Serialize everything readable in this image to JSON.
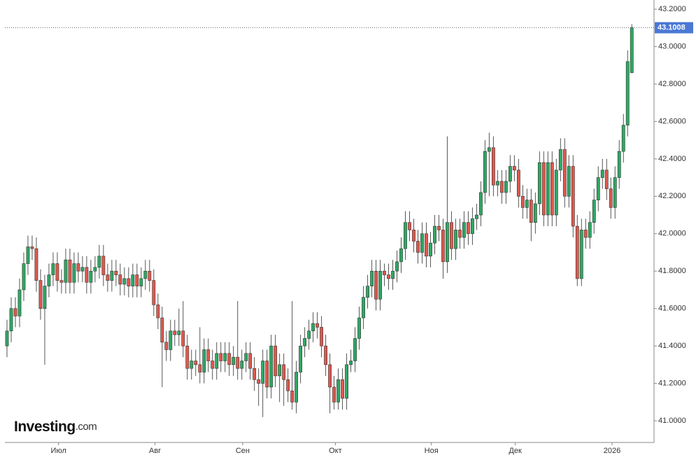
{
  "chart_data": {
    "type": "candlestick",
    "logo": {
      "brand": "Investing",
      "suffix": ".com"
    },
    "open": [
      41.4,
      41.48,
      41.6,
      41.56,
      41.7,
      41.84,
      41.93,
      41.92,
      41.75,
      41.6,
      41.72,
      41.78,
      41.84,
      41.75,
      41.74,
      41.86,
      41.74,
      41.84,
      41.8,
      41.82,
      41.74,
      41.8,
      41.82,
      41.88,
      41.78,
      41.75,
      41.8,
      41.78,
      41.73,
      41.76,
      41.72,
      41.78,
      41.72,
      41.76,
      41.8,
      41.75,
      41.62,
      41.55,
      41.42,
      41.38,
      41.48,
      41.46,
      41.48,
      41.4,
      41.28,
      41.32,
      41.3,
      41.26,
      41.38,
      41.32,
      41.28,
      41.36,
      41.32,
      41.36,
      41.3,
      41.34,
      41.28,
      41.32,
      41.36,
      41.28,
      41.22,
      41.2,
      41.32,
      41.18,
      41.4,
      41.24,
      41.3,
      41.22,
      41.16,
      41.1,
      41.26,
      41.4,
      41.44,
      41.48,
      41.52,
      41.5,
      41.4,
      41.3,
      41.18,
      41.1,
      41.22,
      41.12,
      41.3,
      41.32,
      41.44,
      41.55,
      41.66,
      41.72,
      41.8,
      41.65,
      41.8,
      41.78,
      41.76,
      41.8,
      41.85,
      41.92,
      42.06,
      42.02,
      41.96,
      41.9,
      42.0,
      41.88,
      41.95,
      42.04,
      42.02,
      41.85,
      42.06,
      41.92,
      42.02,
      41.98,
      42.06,
      42.0,
      42.08,
      42.1,
      42.22,
      42.44,
      42.46,
      42.26,
      42.28,
      42.22,
      42.28,
      42.36,
      42.34,
      42.2,
      42.14,
      42.18,
      42.06,
      42.16,
      42.38,
      42.1,
      42.38,
      42.1,
      42.34,
      42.45,
      42.2,
      42.36,
      42.04,
      41.76,
      42.02,
      41.98,
      42.06,
      42.18,
      42.3,
      42.34,
      42.24,
      42.14,
      42.3,
      42.44,
      42.58,
      42.86
    ],
    "high": [
      41.54,
      41.66,
      41.66,
      41.76,
      41.9,
      41.99,
      41.99,
      41.98,
      41.81,
      41.78,
      41.84,
      41.9,
      41.9,
      41.81,
      41.92,
      41.92,
      41.9,
      41.9,
      41.88,
      41.88,
      41.86,
      41.88,
      41.94,
      41.94,
      41.84,
      41.86,
      41.86,
      41.84,
      41.82,
      41.82,
      41.84,
      41.84,
      41.82,
      41.86,
      41.86,
      41.81,
      41.68,
      41.61,
      41.48,
      41.54,
      41.54,
      41.6,
      41.64,
      41.46,
      41.38,
      41.38,
      41.5,
      41.44,
      41.44,
      41.38,
      41.42,
      41.42,
      41.42,
      41.42,
      41.4,
      41.64,
      41.38,
      41.42,
      41.42,
      41.34,
      41.28,
      41.38,
      41.38,
      41.46,
      41.46,
      41.36,
      41.36,
      41.28,
      41.64,
      41.32,
      41.46,
      41.5,
      41.54,
      41.58,
      41.58,
      41.56,
      41.46,
      41.36,
      41.24,
      41.28,
      41.28,
      41.36,
      41.38,
      41.5,
      41.61,
      41.72,
      41.78,
      41.86,
      41.86,
      41.86,
      41.84,
      41.84,
      41.86,
      41.91,
      41.98,
      42.12,
      42.12,
      42.08,
      42.02,
      42.06,
      42.06,
      42.01,
      42.1,
      42.1,
      42.08,
      42.52,
      42.12,
      42.08,
      42.08,
      42.12,
      42.12,
      42.14,
      42.16,
      42.28,
      42.5,
      42.54,
      42.52,
      42.34,
      42.34,
      42.34,
      42.42,
      42.42,
      42.4,
      42.26,
      42.24,
      42.24,
      42.22,
      42.44,
      42.44,
      42.44,
      42.44,
      42.4,
      42.51,
      42.51,
      42.42,
      42.42,
      42.1,
      42.08,
      42.08,
      42.12,
      42.24,
      42.36,
      42.4,
      42.4,
      42.3,
      42.36,
      42.5,
      42.64,
      42.98,
      43.12
    ],
    "low": [
      41.34,
      41.42,
      41.5,
      41.5,
      41.64,
      41.78,
      41.86,
      41.69,
      41.54,
      41.3,
      41.66,
      41.72,
      41.69,
      41.68,
      41.68,
      41.68,
      41.68,
      41.74,
      41.74,
      41.68,
      41.68,
      41.74,
      41.76,
      41.72,
      41.69,
      41.69,
      41.72,
      41.67,
      41.67,
      41.66,
      41.66,
      41.66,
      41.66,
      41.7,
      41.69,
      41.56,
      41.49,
      41.18,
      41.32,
      41.32,
      41.4,
      41.4,
      41.34,
      41.22,
      41.22,
      41.24,
      41.2,
      41.2,
      41.26,
      41.22,
      41.22,
      41.26,
      41.26,
      41.24,
      41.24,
      41.22,
      41.22,
      41.26,
      41.22,
      41.16,
      41.08,
      41.02,
      41.12,
      41.12,
      41.18,
      41.1,
      41.08,
      41.1,
      41.06,
      41.04,
      41.2,
      41.34,
      41.38,
      41.42,
      41.44,
      41.34,
      41.24,
      41.04,
      41.06,
      41.06,
      41.06,
      41.06,
      41.26,
      41.26,
      41.38,
      41.49,
      41.6,
      41.66,
      41.59,
      41.59,
      41.72,
      41.7,
      41.7,
      41.74,
      41.79,
      41.86,
      41.96,
      41.9,
      41.84,
      41.84,
      41.82,
      41.82,
      41.89,
      41.96,
      41.76,
      41.79,
      41.86,
      41.86,
      41.92,
      41.92,
      41.94,
      41.94,
      42.02,
      42.04,
      42.16,
      42.2,
      42.2,
      42.2,
      42.16,
      42.16,
      42.22,
      42.28,
      42.14,
      42.08,
      42.08,
      41.96,
      42.0,
      42.1,
      42.04,
      42.04,
      42.04,
      42.04,
      42.28,
      42.14,
      42.14,
      41.98,
      41.72,
      41.72,
      41.92,
      41.92,
      42.0,
      42.12,
      42.24,
      42.18,
      42.08,
      42.08,
      42.24,
      42.38,
      42.52,
      42.86
    ],
    "close": [
      41.48,
      41.6,
      41.56,
      41.7,
      41.84,
      41.93,
      41.92,
      41.75,
      41.6,
      41.72,
      41.78,
      41.84,
      41.75,
      41.74,
      41.86,
      41.74,
      41.84,
      41.8,
      41.82,
      41.74,
      41.8,
      41.82,
      41.88,
      41.78,
      41.75,
      41.8,
      41.78,
      41.73,
      41.76,
      41.72,
      41.78,
      41.72,
      41.76,
      41.8,
      41.75,
      41.62,
      41.55,
      41.42,
      41.38,
      41.48,
      41.46,
      41.48,
      41.4,
      41.28,
      41.32,
      41.3,
      41.26,
      41.38,
      41.32,
      41.28,
      41.36,
      41.32,
      41.36,
      41.3,
      41.34,
      41.28,
      41.32,
      41.36,
      41.28,
      41.22,
      41.2,
      41.32,
      41.18,
      41.4,
      41.24,
      41.3,
      41.22,
      41.16,
      41.1,
      41.26,
      41.4,
      41.44,
      41.48,
      41.52,
      41.5,
      41.4,
      41.3,
      41.18,
      41.1,
      41.22,
      41.12,
      41.3,
      41.32,
      41.44,
      41.55,
      41.66,
      41.72,
      41.8,
      41.65,
      41.8,
      41.78,
      41.76,
      41.8,
      41.85,
      41.92,
      42.06,
      42.02,
      41.96,
      41.9,
      42.0,
      41.88,
      41.95,
      42.04,
      42.02,
      41.85,
      42.06,
      41.92,
      42.02,
      41.98,
      42.06,
      42.0,
      42.08,
      42.1,
      42.22,
      42.44,
      42.46,
      42.26,
      42.28,
      42.22,
      42.28,
      42.36,
      42.34,
      42.2,
      42.14,
      42.18,
      42.06,
      42.16,
      42.38,
      42.1,
      42.38,
      42.1,
      42.34,
      42.45,
      42.2,
      42.36,
      42.04,
      41.76,
      42.02,
      41.98,
      42.06,
      42.18,
      42.3,
      42.34,
      42.24,
      42.14,
      42.3,
      42.44,
      42.58,
      42.92,
      43.1008
    ],
    "up_color": "#2ea863",
    "down_color": "#e0584c",
    "last_color": "#4a78d4",
    "ylim": [
      40.884,
      43.249
    ],
    "yticks": [
      {
        "value": 41.0,
        "label": "41.0000"
      },
      {
        "value": 41.2,
        "label": "41.2000"
      },
      {
        "value": 41.4,
        "label": "41.4000"
      },
      {
        "value": 41.6,
        "label": "41.6000"
      },
      {
        "value": 41.8,
        "label": "41.8000"
      },
      {
        "value": 42.0,
        "label": "42.0000"
      },
      {
        "value": 42.2,
        "label": "42.2000"
      },
      {
        "value": 42.4,
        "label": "42.4000"
      },
      {
        "value": 42.6,
        "label": "42.6000"
      },
      {
        "value": 42.8,
        "label": "42.8000"
      },
      {
        "value": 43.0,
        "label": "43.0000"
      },
      {
        "value": 43.2,
        "label": "43.2000"
      }
    ],
    "xticks": [
      {
        "value": 12.3,
        "label": "Июл"
      },
      {
        "value": 35.3,
        "label": "Авг"
      },
      {
        "value": 56.2,
        "label": "Сен"
      },
      {
        "value": 78.3,
        "label": "Окт"
      },
      {
        "value": 101.2,
        "label": "Ноя"
      },
      {
        "value": 121.2,
        "label": "Дек"
      },
      {
        "value": 144.3,
        "label": "2026"
      }
    ],
    "xlim": [
      -0.5,
      154.3
    ]
  }
}
